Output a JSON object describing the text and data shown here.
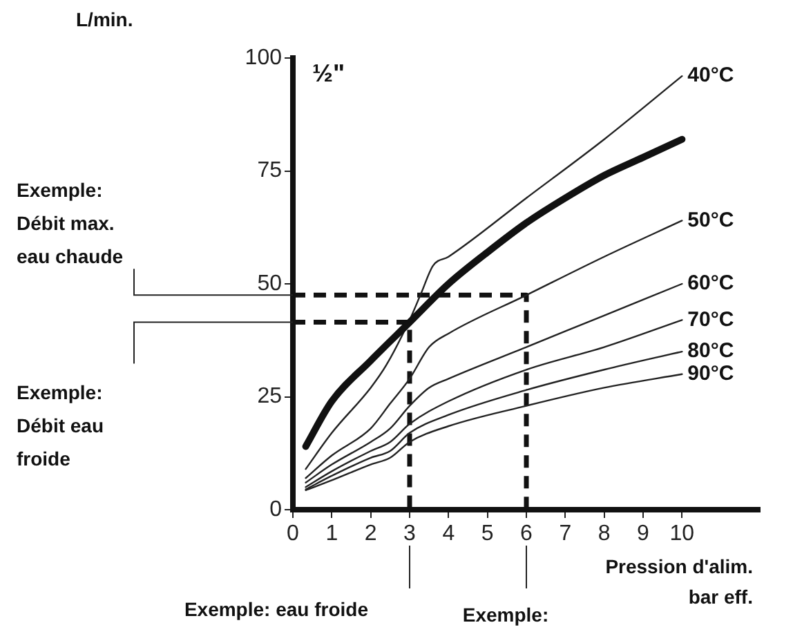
{
  "chart_data": {
    "type": "line",
    "xlabel": "Pression d'alim. bar eff.",
    "xlim": [
      0,
      12
    ],
    "xticks": [
      0,
      1,
      2,
      3,
      4,
      5,
      6,
      7,
      8,
      9,
      10
    ],
    "ylim": [
      0,
      100
    ],
    "yticks": [
      0,
      25,
      50,
      75,
      100
    ],
    "grid": false,
    "legend": false,
    "marker": "none",
    "annotations": [
      "½\"",
      {
        "text": "Exemple: Débit max. eau chaude",
        "x": 0,
        "y": 47.5
      },
      "Exemple: Débit eau froide",
      "Exemple: eau froide",
      "Exemple:",
      "L/min."
    ],
    "series": [
      {
        "color": "#111111",
        "line_style": "solid",
        "x": [
          0.33,
          1,
          2,
          3,
          4,
          5,
          6,
          7,
          8,
          9,
          10
        ],
        "values": [
          14,
          24,
          33,
          41.5,
          50,
          57,
          63.5,
          69,
          74,
          78,
          82
        ]
      },
      {
        "name": "40°C",
        "color": "#222222",
        "line_style": "solid",
        "x": [
          0.33,
          1,
          2,
          2.4,
          3,
          3.3,
          3.6,
          4,
          6,
          8,
          10
        ],
        "values": [
          9,
          17,
          27,
          32,
          42,
          48,
          54,
          56,
          69,
          82,
          96
        ]
      },
      {
        "name": "50°C",
        "color": "#222222",
        "line_style": "solid",
        "x": [
          0.33,
          1,
          2,
          2.5,
          3,
          3.5,
          4,
          6,
          8,
          10
        ],
        "values": [
          7,
          12,
          18,
          23.5,
          29,
          36,
          39,
          47.5,
          56,
          64
        ]
      },
      {
        "name": "60°C",
        "color": "#222222",
        "line_style": "solid",
        "x": [
          0.33,
          1,
          2,
          2.5,
          3,
          3.5,
          4,
          6,
          8,
          10
        ],
        "values": [
          6,
          10,
          15,
          18,
          23,
          27,
          29,
          36,
          43,
          50
        ]
      },
      {
        "name": "70°C",
        "color": "#222222",
        "line_style": "solid",
        "x": [
          0.33,
          1,
          2,
          2.5,
          3,
          4,
          6,
          8,
          10
        ],
        "values": [
          5,
          8.5,
          13,
          15,
          19,
          24,
          31,
          36,
          42
        ]
      },
      {
        "name": "80°C",
        "color": "#222222",
        "line_style": "solid",
        "x": [
          0.33,
          1,
          2,
          2.5,
          3,
          4,
          6,
          8,
          10
        ],
        "values": [
          4.5,
          7.5,
          11.5,
          13,
          17,
          21,
          26.5,
          31,
          35
        ]
      },
      {
        "name": "90°C",
        "color": "#222222",
        "line_style": "solid",
        "x": [
          0.33,
          1,
          2,
          2.5,
          3,
          4,
          6,
          8,
          10
        ],
        "values": [
          4.3,
          6.5,
          10,
          11.5,
          15,
          18.5,
          23,
          27,
          30
        ]
      },
      {
        "color": "#111111",
        "line_style": "dashed",
        "x": [
          0,
          6,
          6
        ],
        "values": [
          47.5,
          47.5,
          0
        ]
      },
      {
        "color": "#111111",
        "line_style": "dashed",
        "x": [
          0,
          3,
          3
        ],
        "values": [
          41.5,
          41.5,
          0
        ]
      }
    ]
  }
}
